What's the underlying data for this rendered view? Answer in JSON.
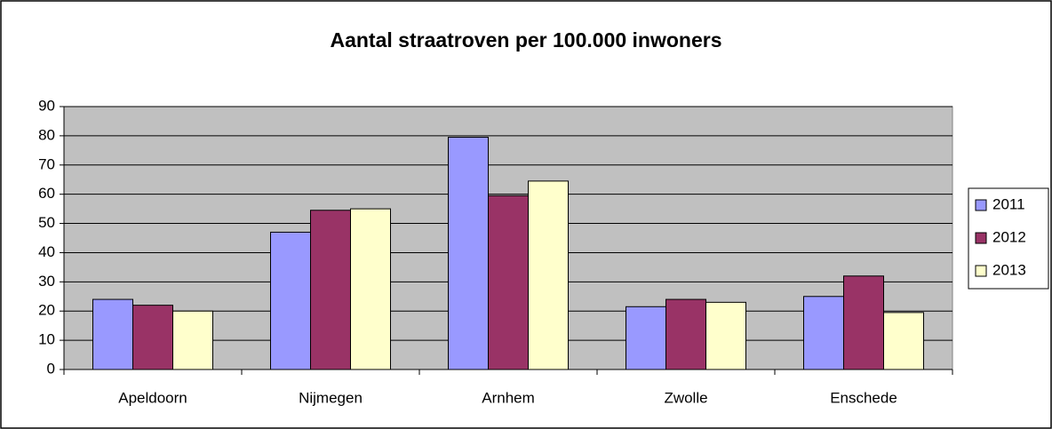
{
  "chart_data": {
    "type": "bar",
    "title": "Aantal straatroven per 100.000 inwoners",
    "categories": [
      "Apeldoorn",
      "Nijmegen",
      "Arnhem",
      "Zwolle",
      "Enschede"
    ],
    "series": [
      {
        "name": "2011",
        "color": "#9999ff",
        "values": [
          24,
          47,
          79.5,
          21.5,
          25
        ]
      },
      {
        "name": "2012",
        "color": "#993366",
        "values": [
          22,
          54.5,
          59.5,
          24,
          32
        ]
      },
      {
        "name": "2013",
        "color": "#ffffcc",
        "values": [
          20,
          55,
          64.5,
          23,
          19.5
        ]
      }
    ],
    "ylim": [
      0,
      90
    ],
    "yticks": [
      0,
      10,
      20,
      30,
      40,
      50,
      60,
      70,
      80,
      90
    ],
    "grid": true,
    "legend": "right",
    "plot_background": "#c0c0c0"
  }
}
